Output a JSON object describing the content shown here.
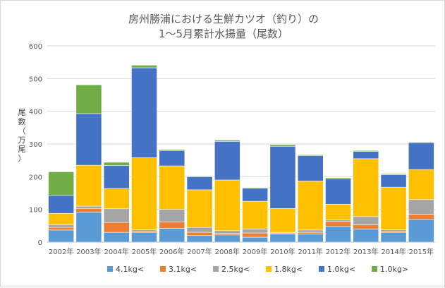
{
  "chart_data": {
    "type": "bar",
    "stacked": true,
    "title_lines": [
      "房州勝浦における生鮮カツオ（釣り）の",
      "1～5月累計水揚量（尾数）"
    ],
    "ylabel": "尾数（万尾）",
    "xlabel": "",
    "ylim": [
      0,
      600
    ],
    "yticks": [
      0,
      100,
      200,
      300,
      400,
      500,
      600
    ],
    "grid": true,
    "legend_position": "bottom",
    "categories": [
      "2002年",
      "2003年",
      "2004年",
      "2005年",
      "2006年",
      "2007年",
      "2008年",
      "2009年",
      "2010年",
      "2011年",
      "2012年",
      "2013年",
      "2014年",
      "2015年"
    ],
    "series": [
      {
        "name": "4.1kg<",
        "color": "#5b9bd5",
        "values": [
          37,
          92,
          30,
          30,
          42,
          20,
          22,
          15,
          25,
          25,
          48,
          40,
          30,
          70
        ]
      },
      {
        "name": "3.1kg<",
        "color": "#ed7d31",
        "values": [
          8,
          10,
          30,
          3,
          20,
          10,
          5,
          13,
          3,
          5,
          15,
          13,
          3,
          15
        ]
      },
      {
        "name": "2.5kg<",
        "color": "#a5a5a5",
        "values": [
          8,
          8,
          42,
          5,
          38,
          15,
          8,
          12,
          2,
          7,
          5,
          25,
          5,
          45
        ]
      },
      {
        "name": "1.8kg<",
        "color": "#ffc000",
        "values": [
          35,
          125,
          62,
          220,
          133,
          115,
          155,
          85,
          73,
          150,
          48,
          177,
          130,
          92
        ]
      },
      {
        "name": "1.0kg<",
        "color": "#4472c4",
        "values": [
          55,
          158,
          70,
          275,
          47,
          40,
          118,
          40,
          190,
          77,
          78,
          22,
          38,
          82
        ]
      },
      {
        "name": "1.0kg>",
        "color": "#70ad47",
        "values": [
          72,
          88,
          10,
          8,
          3,
          2,
          4,
          2,
          5,
          3,
          3,
          3,
          3,
          2
        ]
      }
    ]
  }
}
